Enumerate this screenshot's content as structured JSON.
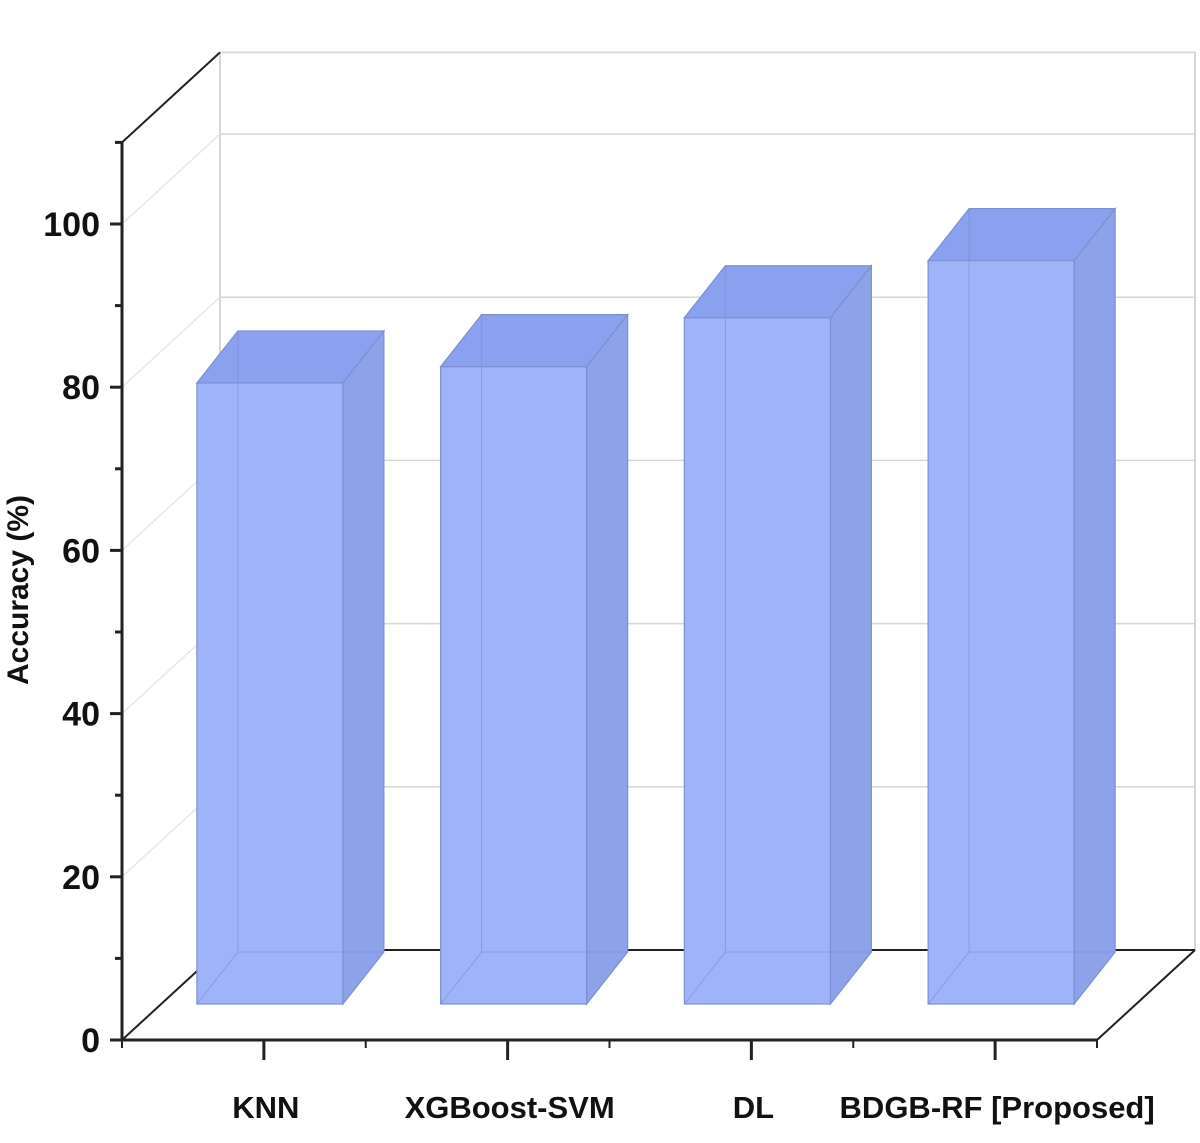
{
  "chart_data": {
    "type": "bar",
    "style": "3d",
    "categories": [
      "KNN",
      "XGBoost-SVM",
      "DL",
      "BDGB-RF [Proposed]"
    ],
    "values": [
      81.5,
      83.5,
      89.5,
      96.5
    ],
    "title": "",
    "xlabel": "",
    "ylabel": "Accuracy (%)",
    "ylim": [
      0,
      110
    ],
    "yticks": [
      0,
      20,
      40,
      60,
      80,
      100
    ],
    "grid": true,
    "legend": "none",
    "colors": {
      "bar_front": "#9fb4f8",
      "bar_top": "#8aa1ef",
      "bar_side": "#8ea2ea",
      "bar_edge": "#7d8fd0",
      "grid": "#d6d6d6",
      "axis": "#222222"
    }
  }
}
